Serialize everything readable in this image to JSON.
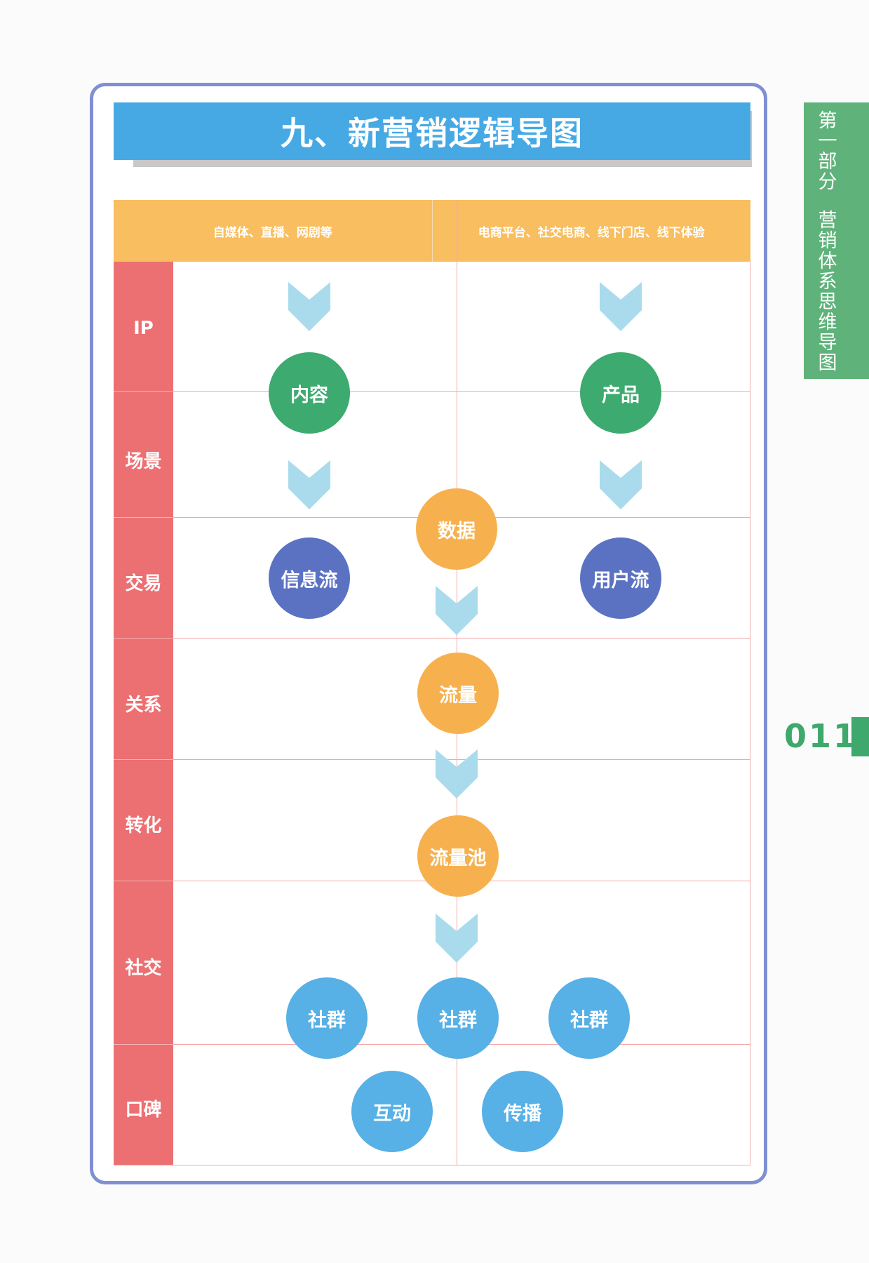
{
  "title": "九、新营销逻辑导图",
  "columns": [
    "自媒体、直播、网剧等",
    "电商平台、社交电商、线下门店、线下体验"
  ],
  "rows": [
    "IP",
    "场景",
    "交易",
    "关系",
    "转化",
    "社交",
    "口碑"
  ],
  "nodes": {
    "content": "内容",
    "product": "产品",
    "data": "数据",
    "info_flow": "信息流",
    "user_flow": "用户流",
    "traffic": "流量",
    "traffic_pool": "流量池",
    "community_1": "社群",
    "community_2": "社群",
    "community_3": "社群",
    "interaction": "互动",
    "spread": "传播"
  },
  "side_tab": {
    "part": [
      "第",
      "一",
      "部",
      "分"
    ],
    "name": [
      "营",
      "销",
      "体",
      "系",
      "思",
      "维",
      "导",
      "图"
    ]
  },
  "page_number": "011",
  "colors": {
    "title_bar": "#47a9e4",
    "header": "#f8be5f",
    "row_labels": "#ec6f71",
    "green": "#3daa6f",
    "indigo": "#5b72c3",
    "orange": "#f6b14e",
    "sky": "#57b0e6",
    "chevron": "#a9dbec",
    "frame": "#7f8fd4",
    "side_tab": "#5fb37a"
  }
}
